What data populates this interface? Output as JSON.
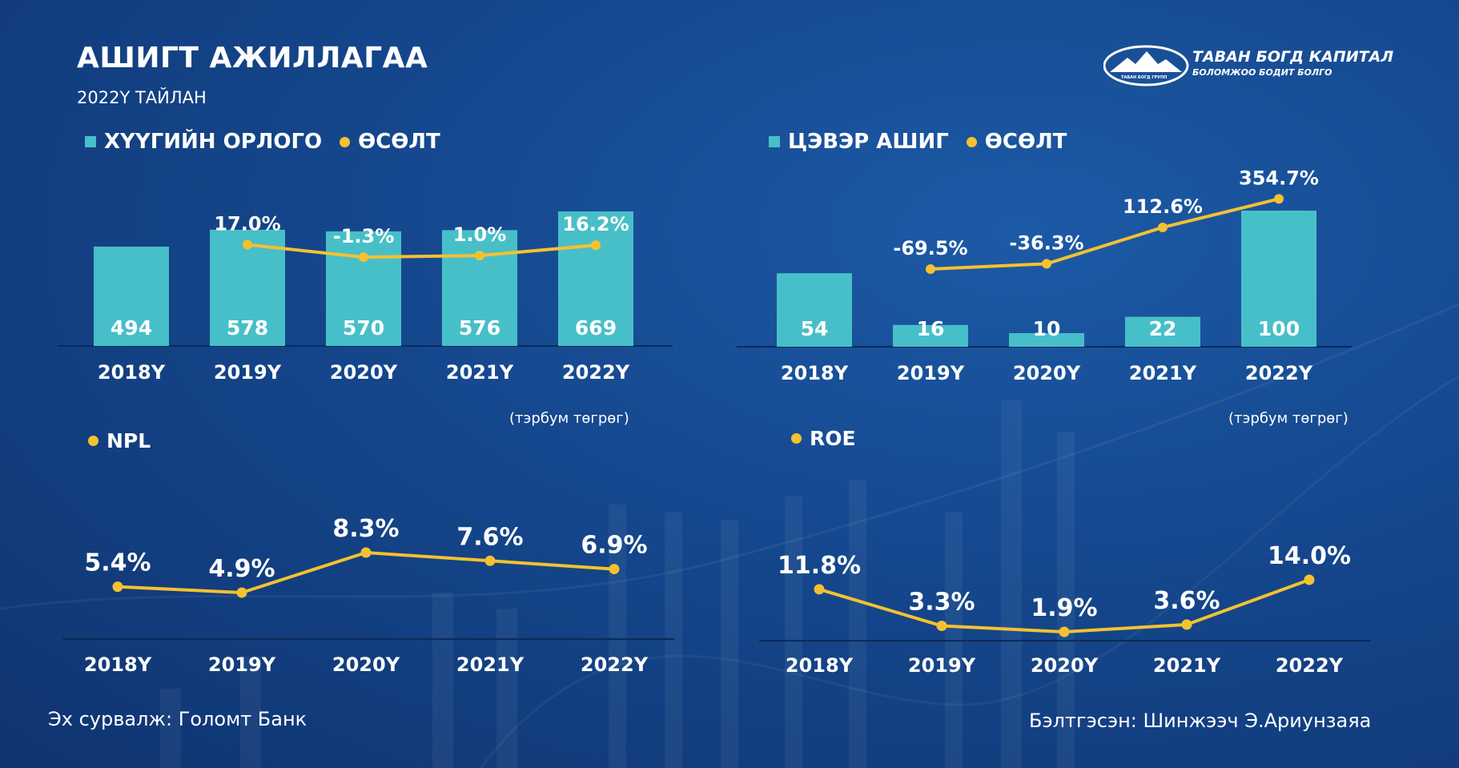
{
  "header": {
    "title": "АШИГТ АЖИЛЛАГАА",
    "subtitle": "2022Y ТАЙЛАН"
  },
  "logo": {
    "name": "ТАВАН БОГД КАПИТАЛ",
    "slogan": "БОЛОМЖОО БОДИТ БОЛГО",
    "sub": "ТАВАН БОГД ГРУПП"
  },
  "colors": {
    "bar": "#47bfc8",
    "line": "#f4c131",
    "background": "#15478d"
  },
  "units": {
    "top_left": "(тэрбум төгрөг)",
    "top_right": "(тэрбум төгрөг)"
  },
  "footer": {
    "source": "Эх сурвалж: Голомт Банк",
    "author": "Бэлтгэсэн: Шинжээч Э.Ариунзаяа"
  },
  "chart_data": [
    {
      "type": "bar",
      "legend": [
        "ХҮҮГИЙН ОРЛОГО",
        "ӨСӨЛТ"
      ],
      "categories": [
        "2018Y",
        "2019Y",
        "2020Y",
        "2021Y",
        "2022Y"
      ],
      "series": [
        {
          "name": "ХҮҮГИЙН ОРЛОГО",
          "type": "bar",
          "values": [
            494,
            578,
            570,
            576,
            669
          ],
          "labels": [
            "494",
            "578",
            "570",
            "576",
            "669"
          ]
        },
        {
          "name": "ӨСӨЛТ",
          "type": "line",
          "values": [
            null,
            17.0,
            -1.3,
            1.0,
            16.2
          ],
          "labels": [
            "",
            "17.0%",
            "-1.3%",
            "1.0%",
            "16.2%"
          ]
        }
      ]
    },
    {
      "type": "bar",
      "legend": [
        "ЦЭВЭР АШИГ",
        "ӨСӨЛТ"
      ],
      "categories": [
        "2018Y",
        "2019Y",
        "2020Y",
        "2021Y",
        "2022Y"
      ],
      "series": [
        {
          "name": "ЦЭВЭР АШИГ",
          "type": "bar",
          "values": [
            54,
            16,
            10,
            22,
            100
          ],
          "labels": [
            "54",
            "16",
            "10",
            "22",
            "100"
          ]
        },
        {
          "name": "ӨСӨЛТ",
          "type": "line",
          "values": [
            null,
            -69.5,
            -36.3,
            112.6,
            354.7
          ],
          "labels": [
            "",
            "-69.5%",
            "-36.3%",
            "112.6%",
            "354.7%"
          ]
        }
      ]
    },
    {
      "type": "line",
      "legend": [
        "NPL"
      ],
      "categories": [
        "2018Y",
        "2019Y",
        "2020Y",
        "2021Y",
        "2022Y"
      ],
      "series": [
        {
          "name": "NPL",
          "values": [
            5.4,
            4.9,
            8.3,
            7.6,
            6.9
          ],
          "labels": [
            "5.4%",
            "4.9%",
            "8.3%",
            "7.6%",
            "6.9%"
          ]
        }
      ]
    },
    {
      "type": "line",
      "legend": [
        "ROE"
      ],
      "categories": [
        "2018Y",
        "2019Y",
        "2020Y",
        "2021Y",
        "2022Y"
      ],
      "series": [
        {
          "name": "ROE",
          "values": [
            11.8,
            3.3,
            1.9,
            3.6,
            14.0
          ],
          "labels": [
            "11.8%",
            "3.3%",
            "1.9%",
            "3.6%",
            "14.0%"
          ]
        }
      ]
    }
  ]
}
